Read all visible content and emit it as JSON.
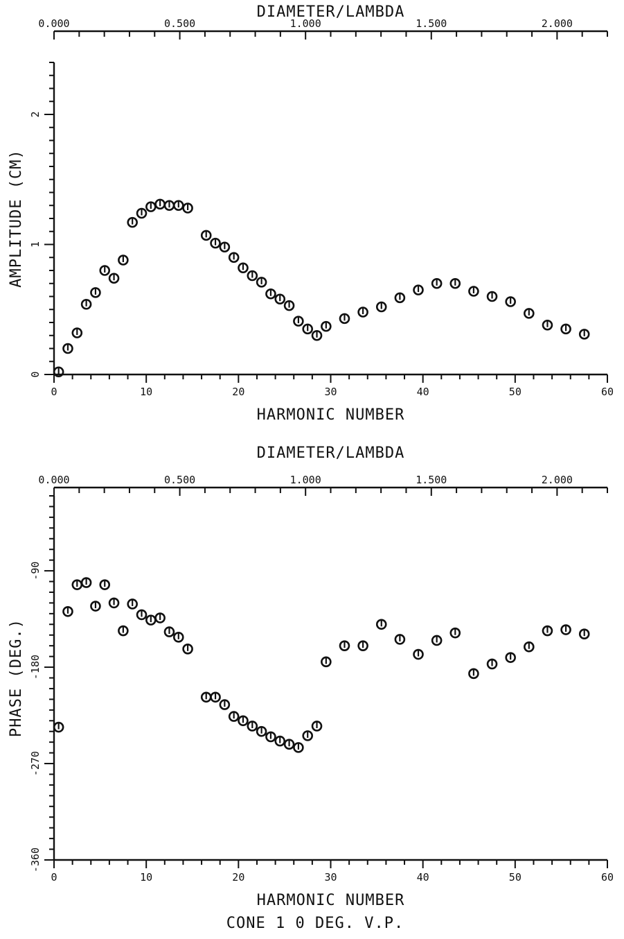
{
  "caption": "CONE 1   0 DEG. V.P.",
  "chart_data": [
    {
      "type": "scatter",
      "title": "",
      "xlabel": "HARMONIC NUMBER",
      "ylabel": "AMPLITUDE (CM)",
      "top_axis_label": "DIAMETER/LAMBDA",
      "xlim": [
        0,
        60
      ],
      "ylim": [
        0,
        2.4
      ],
      "top_xlim": [
        0,
        2.2
      ],
      "x_ticks": [
        0,
        10,
        20,
        30,
        40,
        50,
        60
      ],
      "x_tick_labels": [
        "0",
        "10",
        "20",
        "30",
        "40",
        "50",
        "60"
      ],
      "y_ticks": [
        0,
        1,
        2
      ],
      "y_tick_labels": [
        "0",
        "1",
        "2"
      ],
      "top_ticks": [
        0,
        0.5,
        1.0,
        1.5,
        2.0
      ],
      "top_tick_labels": [
        "0.000",
        "0.500",
        "1.000",
        "1.500",
        "2.000"
      ],
      "marker": "circle-with-bar",
      "series": [
        {
          "x": [
            0.5,
            1.5,
            2.5,
            3.5,
            4.5,
            5.5,
            6.5,
            7.5,
            8.5,
            9.5,
            10.5,
            11.5,
            12.5,
            13.5,
            14.5,
            16.5,
            17.5,
            18.5,
            19.5,
            20.5,
            21.5,
            22.5,
            23.5,
            24.5,
            25.5,
            26.5,
            27.5,
            28.5,
            29.5,
            31.5,
            33.5,
            35.5,
            37.5,
            39.5,
            41.5,
            43.5,
            45.5,
            47.5,
            49.5,
            51.5,
            53.5,
            55.5,
            57.5
          ],
          "y": [
            0.02,
            0.2,
            0.32,
            0.54,
            0.63,
            0.8,
            0.74,
            0.88,
            1.17,
            1.24,
            1.29,
            1.31,
            1.3,
            1.3,
            1.28,
            1.07,
            1.01,
            0.98,
            0.9,
            0.82,
            0.76,
            0.71,
            0.62,
            0.58,
            0.53,
            0.41,
            0.35,
            0.3,
            0.37,
            0.43,
            0.48,
            0.52,
            0.59,
            0.65,
            0.7,
            0.7,
            0.64,
            0.6,
            0.56,
            0.47,
            0.38,
            0.35,
            0.31
          ]
        }
      ]
    },
    {
      "type": "scatter",
      "title": "",
      "xlabel": "HARMONIC NUMBER",
      "ylabel": "PHASE (DEG.)",
      "top_axis_label": "DIAMETER/LAMBDA",
      "xlim": [
        0,
        60
      ],
      "ylim": [
        -360,
        -20
      ],
      "top_xlim": [
        0,
        2.2
      ],
      "x_ticks": [
        0,
        10,
        20,
        30,
        40,
        50,
        60
      ],
      "x_tick_labels": [
        "0",
        "10",
        "20",
        "30",
        "40",
        "50",
        "60"
      ],
      "y_ticks": [
        -360,
        -270,
        -180,
        -90
      ],
      "y_tick_labels": [
        "-360",
        "-270",
        "-180",
        "-90"
      ],
      "top_ticks": [
        0,
        0.5,
        1.0,
        1.5,
        2.0
      ],
      "top_tick_labels": [
        "0.000",
        "0.500",
        "1.000",
        "1.500",
        "2.000"
      ],
      "marker": "circle-with-bar",
      "series": [
        {
          "x": [
            0.5,
            1.5,
            2.5,
            3.5,
            4.5,
            5.5,
            6.5,
            7.5,
            8.5,
            9.5,
            10.5,
            11.5,
            12.5,
            13.5,
            14.5,
            16.5,
            17.5,
            18.5,
            19.5,
            20.5,
            21.5,
            22.5,
            23.5,
            24.5,
            25.5,
            26.5,
            27.5,
            28.5,
            29.5,
            31.5,
            33.5,
            35.5,
            37.5,
            39.5,
            41.5,
            43.5,
            45.5,
            47.5,
            49.5,
            51.5,
            53.5,
            55.5,
            57.5
          ],
          "y": [
            -236,
            -128,
            -103,
            -101,
            -123,
            -103,
            -120,
            -146,
            -121,
            -131,
            -136,
            -134,
            -147,
            -152,
            -163,
            -208,
            -208,
            -215,
            -226,
            -230,
            -235,
            -240,
            -245,
            -249,
            -252,
            -255,
            -244,
            -235,
            -175,
            -160,
            -160,
            -140,
            -154,
            -168,
            -155,
            -148,
            -186,
            -177,
            -171,
            -161,
            -146,
            -145,
            -149
          ]
        }
      ]
    }
  ]
}
